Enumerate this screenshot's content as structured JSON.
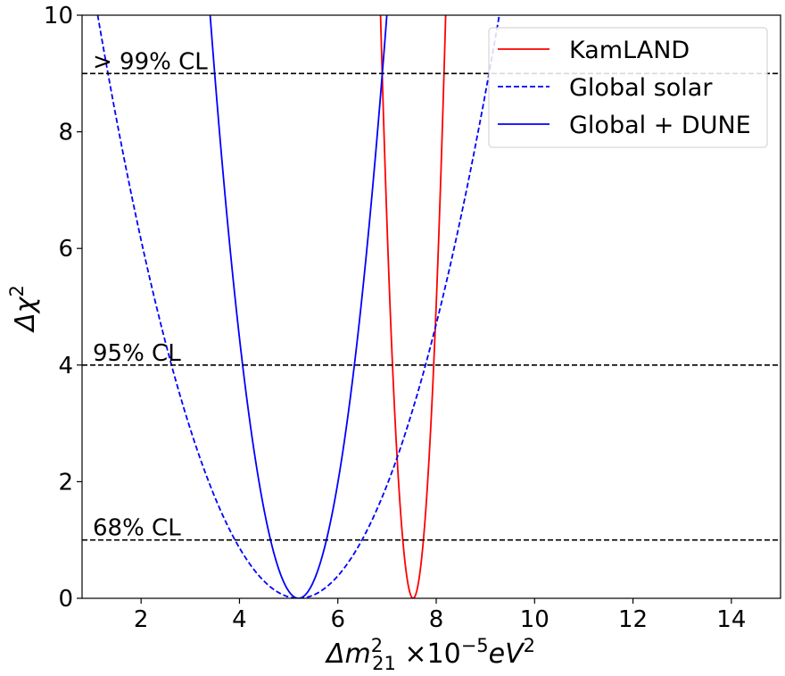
{
  "chart_data": {
    "type": "line",
    "xlabel": "Δm²₂₁ ×10⁻⁵eV²",
    "ylabel": "Δχ²",
    "xlim": [
      0.8,
      15
    ],
    "ylim": [
      0,
      10
    ],
    "x_ticks": [
      2,
      4,
      6,
      8,
      10,
      12,
      14
    ],
    "y_ticks": [
      0,
      2,
      4,
      6,
      8,
      10
    ],
    "grid": false,
    "legend_position": "top-right",
    "series": [
      {
        "name": "KamLAND",
        "style": "solid",
        "color": "#ff0000",
        "min_x": 7.53,
        "min_y": 0,
        "curvature": 22.8
      },
      {
        "name": "Global solar",
        "style": "dashed",
        "color": "#0000ff",
        "min_x": 5.2,
        "min_y": 0,
        "curvature": 0.6
      },
      {
        "name": "Global + DUNE",
        "style": "solid",
        "color": "#0000ff",
        "min_x": 5.2,
        "min_y": 0,
        "curvature": 3.1
      }
    ],
    "reference_lines": [
      {
        "y": 9,
        "label": "> 99% CL"
      },
      {
        "y": 4,
        "label": "95% CL"
      },
      {
        "y": 1,
        "label": "68% CL"
      }
    ]
  }
}
